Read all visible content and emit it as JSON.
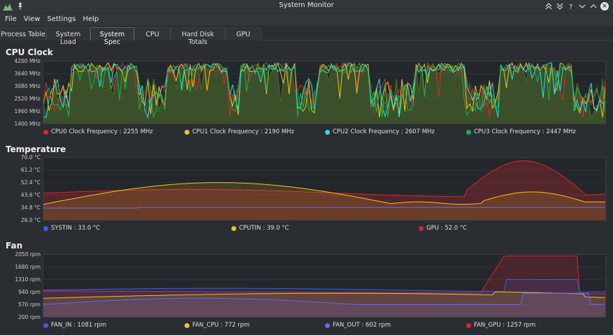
{
  "window": {
    "title": "System Monitor"
  },
  "menu": [
    "File",
    "View",
    "Settings",
    "Help"
  ],
  "tabs": [
    "Process Table",
    "System Load",
    "System Spec",
    "CPU",
    "Hard Disk Totals",
    "GPU"
  ],
  "active_tab": "System Spec",
  "colors": {
    "red": "#e0242b",
    "yellow": "#f3c21b",
    "cyan": "#1fe3e6",
    "green": "#21b14a",
    "blue": "#3b5ee6",
    "violet": "#6c63ff"
  },
  "cpu_clock": {
    "title": "CPU Clock",
    "y_ticks": [
      "4200 MHz",
      "3640 MHz",
      "3080 MHz",
      "2520 MHz",
      "1960 MHz",
      "1400 MHz"
    ],
    "legend": [
      "CPU0 Clock Frequency : 2255 MHz",
      "CPU1 Clock Frequency : 2190 MHz",
      "CPU2 Clock Frequency : 2607 MHz",
      "CPU3 Clock Frequency : 2447 MHz"
    ]
  },
  "temperature": {
    "title": "Temperature",
    "y_ticks": [
      "70.0 °C",
      "61.2 °C",
      "52.4 °C",
      "43.6 °C",
      "34.8 °C",
      "26.0 °C"
    ],
    "legend": [
      "SYSTIN : 33.0 °C",
      "CPUTIN : 39.0 °C",
      "GPU : 52.0 °C"
    ]
  },
  "fan": {
    "title": "Fan",
    "y_ticks": [
      "2050 rpm",
      "1680 rpm",
      "1310 rpm",
      "940 rpm",
      "570 rpm",
      "200 rpm"
    ],
    "legend": [
      "FAN_IN : 1081 rpm",
      "FAN_CPU : 772 rpm",
      "FAN_OUT : 602 rpm",
      "FAN_GPU : 1257 rpm"
    ]
  },
  "chart_data": [
    {
      "type": "area",
      "title": "CPU Clock",
      "ylim": [
        1400,
        4200
      ],
      "series": [
        {
          "name": "CPU0 Clock Frequency",
          "current": 2255
        },
        {
          "name": "CPU1 Clock Frequency",
          "current": 2190
        },
        {
          "name": "CPU2 Clock Frequency",
          "current": 2607
        },
        {
          "name": "CPU3 Clock Frequency",
          "current": 2447
        }
      ]
    },
    {
      "type": "area",
      "title": "Temperature",
      "ylim": [
        26.0,
        70.0
      ],
      "series": [
        {
          "name": "SYSTIN",
          "current": 33.0
        },
        {
          "name": "CPUTIN",
          "current": 39.0
        },
        {
          "name": "GPU",
          "current": 52.0
        }
      ]
    },
    {
      "type": "area",
      "title": "Fan",
      "ylim": [
        200,
        2050
      ],
      "series": [
        {
          "name": "FAN_IN",
          "current": 1081
        },
        {
          "name": "FAN_CPU",
          "current": 772
        },
        {
          "name": "FAN_OUT",
          "current": 602
        },
        {
          "name": "FAN_GPU",
          "current": 1257
        }
      ]
    }
  ]
}
